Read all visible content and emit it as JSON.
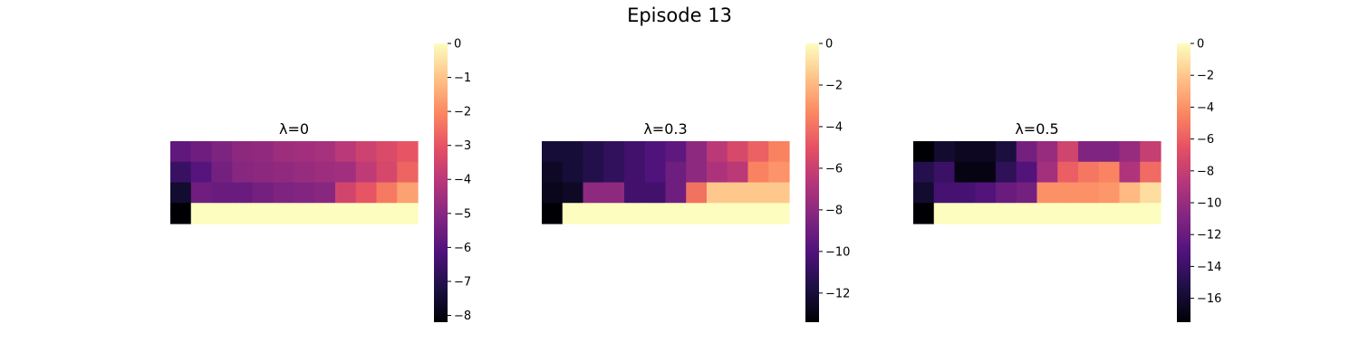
{
  "figure": {
    "title": "Episode 13"
  },
  "chart_data": [
    {
      "type": "heatmap",
      "title": "λ=0",
      "colormap": "magma",
      "grid": false,
      "zlim": [
        -8.2,
        0
      ],
      "colorbar": {
        "ticks": [
          0,
          -1,
          -2,
          -3,
          -4,
          -5,
          -6,
          -7,
          -8
        ],
        "tick_labels": [
          "0",
          "−1",
          "−2",
          "−3",
          "−4",
          "−5",
          "−6",
          "−7",
          "−8"
        ]
      },
      "values": [
        [
          -5.8,
          -5.5,
          -5.2,
          -4.9,
          -4.8,
          -4.6,
          -4.5,
          -4.4,
          -4.0,
          -3.6,
          -3.3,
          -3.0
        ],
        [
          -6.6,
          -6.0,
          -5.4,
          -5.0,
          -4.9,
          -4.8,
          -4.7,
          -4.6,
          -4.5,
          -3.9,
          -3.4,
          -2.7
        ],
        [
          -7.5,
          -5.5,
          -5.6,
          -5.6,
          -5.4,
          -5.2,
          -5.1,
          -5.0,
          -3.5,
          -3.0,
          -2.3,
          -1.6
        ],
        [
          -8.2,
          0,
          0,
          0,
          0,
          0,
          0,
          0,
          0,
          0,
          0,
          0
        ]
      ]
    },
    {
      "type": "heatmap",
      "title": "λ=0.3",
      "colormap": "magma",
      "grid": false,
      "zlim": [
        -13.4,
        0
      ],
      "colorbar": {
        "ticks": [
          0,
          -2,
          -4,
          -6,
          -8,
          -10,
          -12
        ],
        "tick_labels": [
          "0",
          "−2",
          "−4",
          "−6",
          "−8",
          "−10",
          "−12"
        ]
      },
      "values": [
        [
          -12.0,
          -12.0,
          -11.5,
          -11.0,
          -10.5,
          -10.0,
          -9.5,
          -8.0,
          -6.5,
          -5.5,
          -4.5,
          -3.5
        ],
        [
          -12.5,
          -12.0,
          -11.5,
          -11.0,
          -10.5,
          -10.0,
          -9.0,
          -8.0,
          -7.0,
          -6.5,
          -3.5,
          -3.0
        ],
        [
          -12.8,
          -12.5,
          -8.0,
          -8.0,
          -10.5,
          -10.5,
          -9.0,
          -4.0,
          -1.5,
          -1.5,
          -1.5,
          -1.5
        ],
        [
          -13.4,
          0,
          0,
          0,
          0,
          0,
          0,
          0,
          0,
          0,
          0,
          0
        ]
      ]
    },
    {
      "type": "heatmap",
      "title": "λ=0.5",
      "colormap": "magma",
      "grid": false,
      "zlim": [
        -17.5,
        0
      ],
      "colorbar": {
        "ticks": [
          0,
          -2,
          -4,
          -6,
          -8,
          -10,
          -12,
          -14,
          -16
        ],
        "tick_labels": [
          "0",
          "−2",
          "−4",
          "−6",
          "−8",
          "−10",
          "−12",
          "−14",
          "−16"
        ]
      },
      "values": [
        [
          -17.5,
          -16.0,
          -16.5,
          -16.5,
          -15.5,
          -11.5,
          -10.0,
          -7.5,
          -11.0,
          -11.0,
          -10.0,
          -8.0
        ],
        [
          -15.0,
          -14.0,
          -17.0,
          -17.0,
          -14.5,
          -13.0,
          -9.5,
          -6.0,
          -5.0,
          -4.5,
          -9.0,
          -5.5
        ],
        [
          -16.0,
          -13.5,
          -13.5,
          -13.0,
          -12.0,
          -11.5,
          -4.0,
          -4.0,
          -4.0,
          -3.8,
          -2.5,
          -1.2
        ],
        [
          -17.5,
          0,
          0,
          0,
          0,
          0,
          0,
          0,
          0,
          0,
          0,
          0
        ]
      ]
    }
  ]
}
